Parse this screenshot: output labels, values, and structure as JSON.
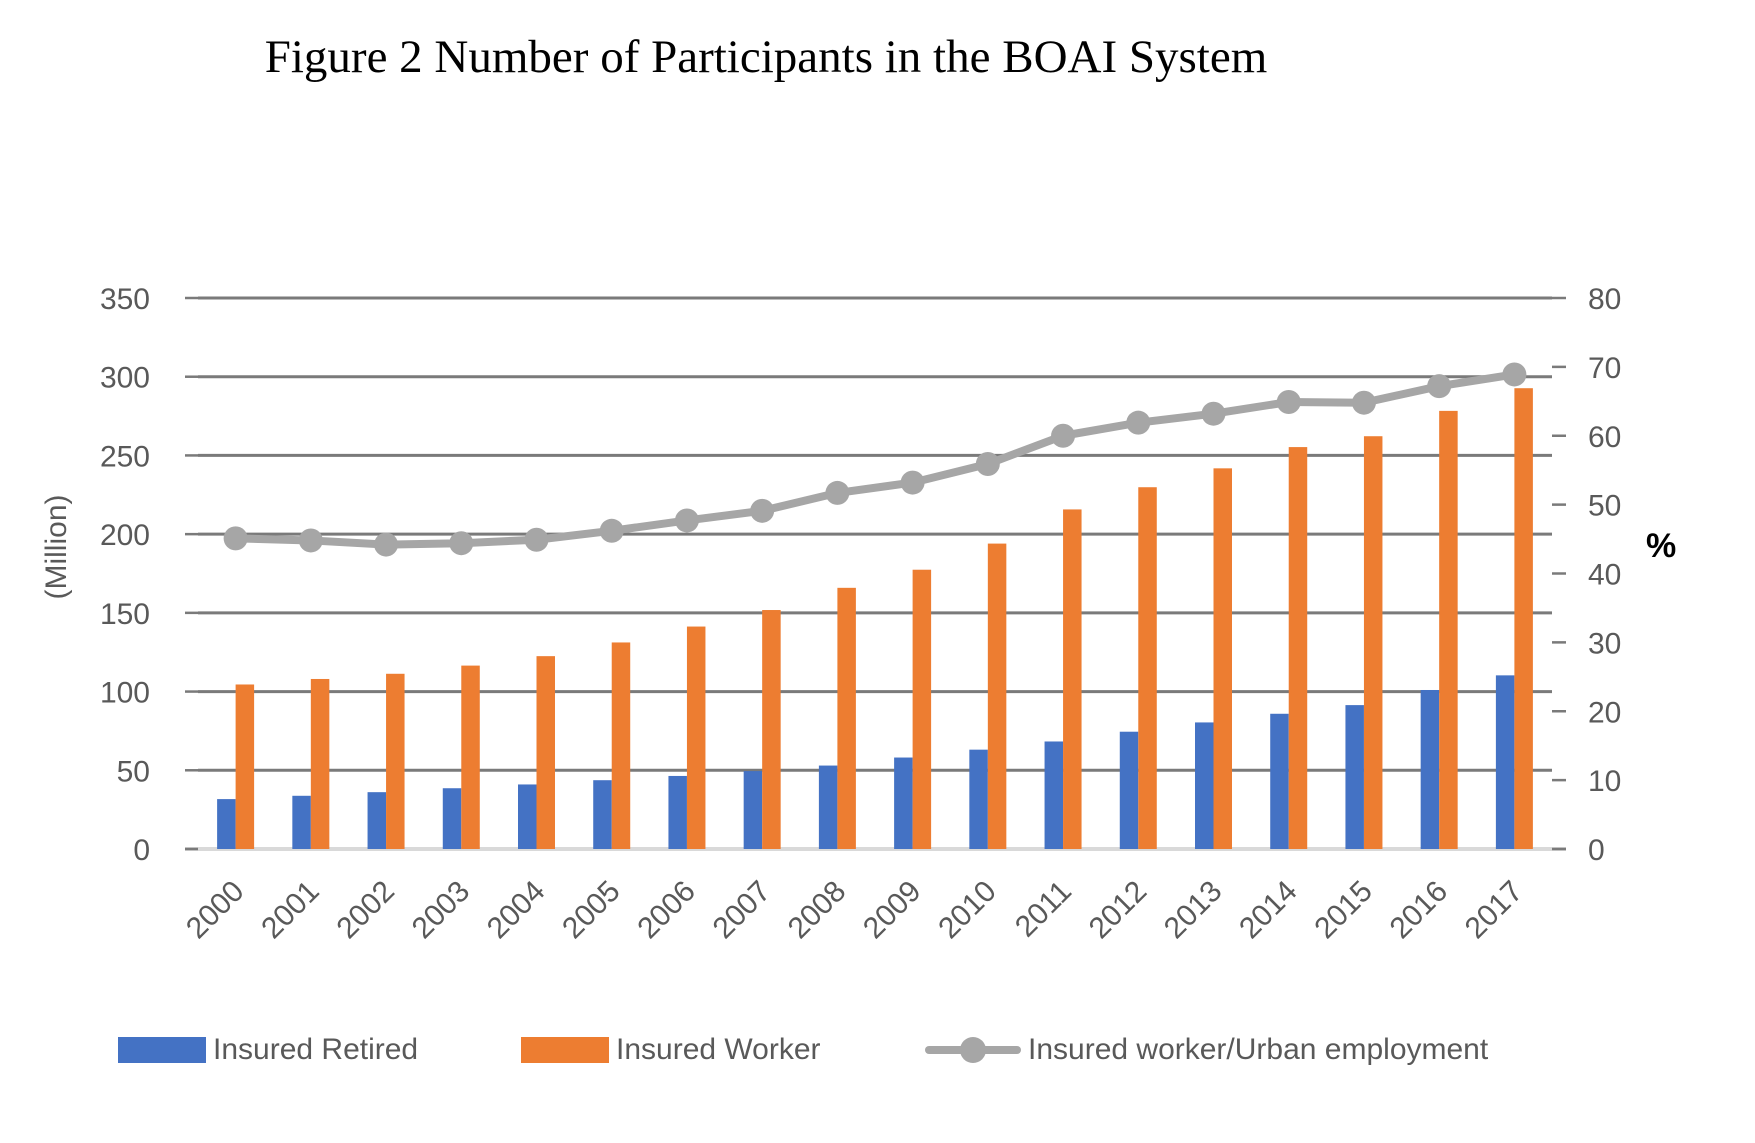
{
  "title": "Figure 2 Number of Participants in the BOAI System",
  "chart_data": {
    "type": "combo-bar-line",
    "categories": [
      "2000",
      "2001",
      "2002",
      "2003",
      "2004",
      "2005",
      "2006",
      "2007",
      "2008",
      "2009",
      "2010",
      "2011",
      "2012",
      "2013",
      "2014",
      "2015",
      "2016",
      "2017"
    ],
    "series": [
      {
        "name": "Insured Retired",
        "type": "bar",
        "axis": "left",
        "color": "#4472C4",
        "values": [
          31.7,
          33.8,
          36.1,
          38.6,
          41.0,
          43.7,
          46.4,
          49.5,
          53.0,
          58.1,
          63.1,
          68.3,
          74.5,
          80.4,
          85.9,
          91.4,
          101.0,
          110.3
        ]
      },
      {
        "name": "Insured Worker",
        "type": "bar",
        "axis": "left",
        "color": "#ED7D31",
        "values": [
          104.5,
          108.0,
          111.3,
          116.5,
          122.5,
          131.2,
          141.3,
          151.8,
          165.9,
          177.4,
          194.0,
          215.7,
          229.8,
          241.8,
          255.3,
          262.2,
          278.3,
          292.7
        ]
      },
      {
        "name": "Insured worker/Urban employment",
        "type": "line",
        "axis": "right",
        "color": "#A6A6A6",
        "values": [
          45.1,
          44.8,
          44.2,
          44.4,
          44.9,
          46.2,
          47.7,
          49.1,
          51.7,
          53.2,
          55.9,
          60.0,
          61.9,
          63.2,
          64.9,
          64.8,
          67.2,
          68.9
        ]
      }
    ],
    "left_axis": {
      "title": "(Million)",
      "min": 0,
      "max": 350,
      "step": 50,
      "tick_labels": [
        "0",
        "50",
        "100",
        "150",
        "200",
        "250",
        "300",
        "350"
      ]
    },
    "right_axis": {
      "title": "%",
      "min": 0,
      "max": 80,
      "step": 10,
      "tick_labels": [
        "0",
        "10",
        "20",
        "30",
        "40",
        "50",
        "60",
        "70",
        "80"
      ]
    },
    "grid": true,
    "legend_position": "bottom"
  },
  "colors": {
    "gridline": "#7A7A7A",
    "baseline": "#D9D9D9",
    "axis_label": "#595959",
    "title_text": "#000000",
    "background": "#FFFFFF"
  }
}
